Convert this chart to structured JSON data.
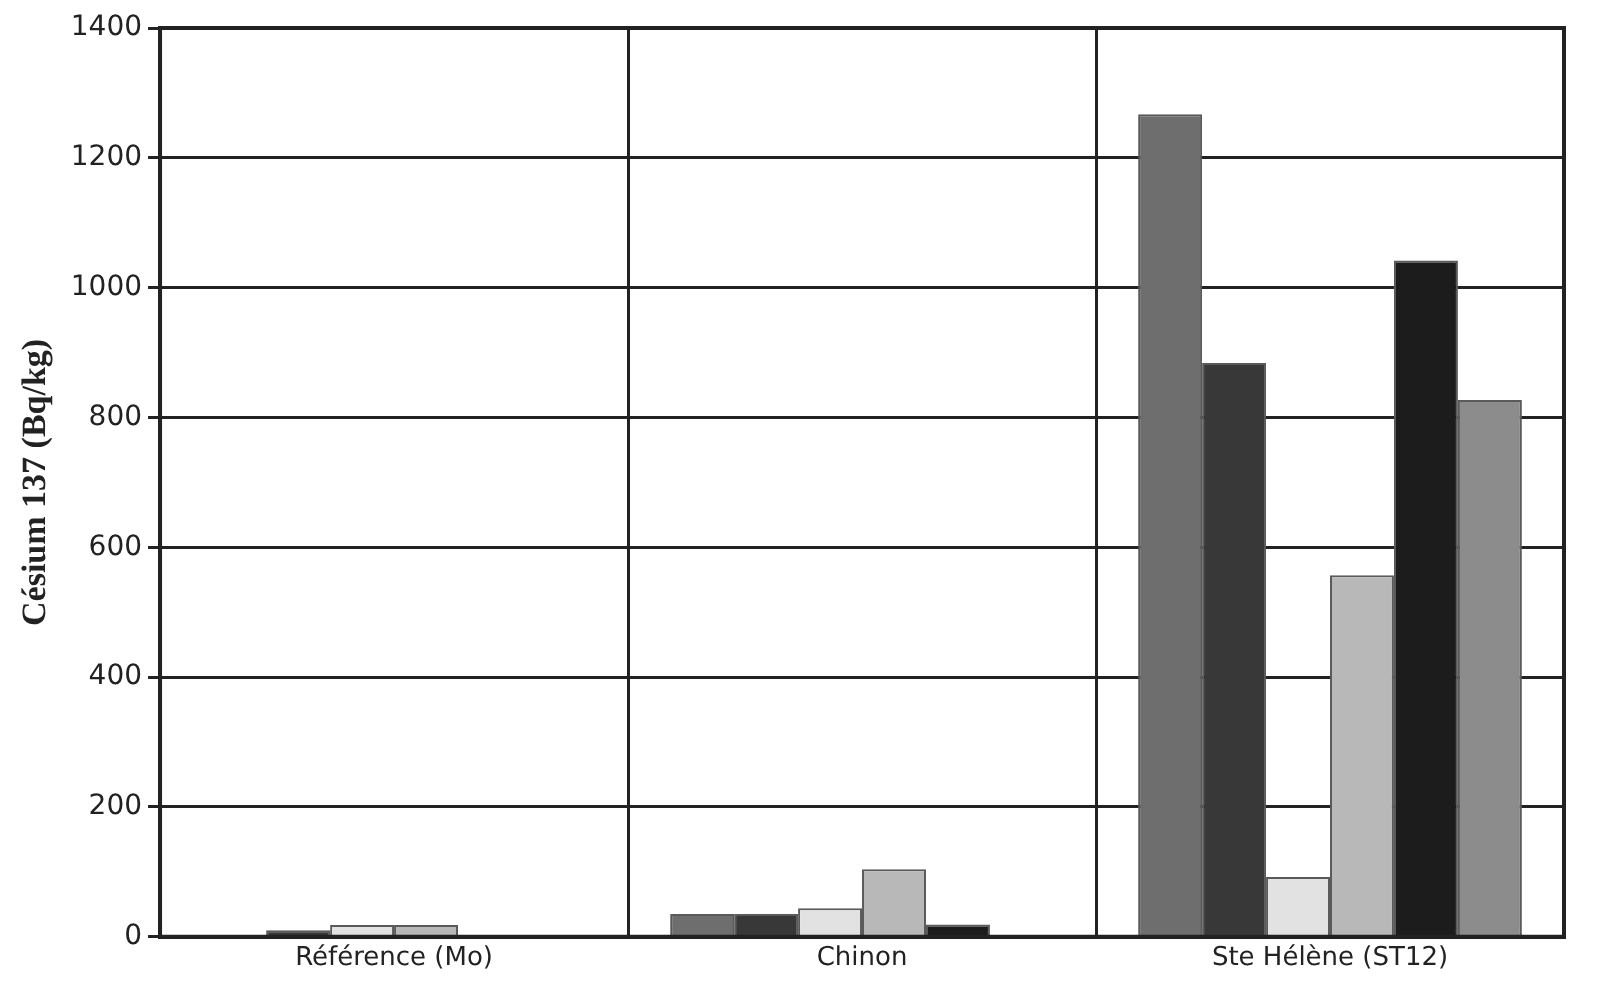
{
  "chart_data": {
    "type": "bar",
    "ylabel": "Césium 137 (Bq/kg)",
    "categories": [
      "Référence (Mo)",
      "Chinon",
      "Ste Hélène (ST12)"
    ],
    "series": [
      {
        "color": "#6e6e6e",
        "values": [
          0,
          35,
          1267
        ]
      },
      {
        "color": "#383838",
        "values": [
          10,
          35,
          884
        ]
      },
      {
        "color": "#e2e2e2",
        "values": [
          18,
          44,
          92
        ]
      },
      {
        "color": "#b8b8b8",
        "values": [
          18,
          104,
          557
        ]
      },
      {
        "color": "#1c1c1c",
        "values": [
          0,
          19,
          1042
        ]
      },
      {
        "color": "#8c8c8c",
        "values": [
          0,
          0,
          827
        ]
      }
    ],
    "ylim": [
      0,
      1400
    ],
    "yticks": [
      0,
      200,
      400,
      600,
      800,
      1000,
      1200,
      1400
    ],
    "grid": true,
    "legend": false
  }
}
